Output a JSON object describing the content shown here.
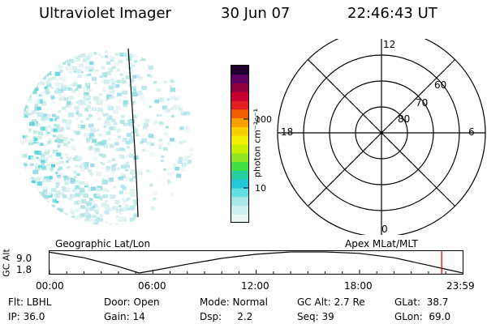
{
  "header": {
    "instrument": "Ultraviolet Imager",
    "date": "30 Jun 07",
    "time": "22:46:43 UT"
  },
  "colorbar": {
    "unit_label": "photon cm⁻²s⁻¹",
    "ticks": [
      "100",
      "10"
    ],
    "colors": [
      "#e8f4f4",
      "#cfeeee",
      "#a6e8e8",
      "#60e0e0",
      "#20c8d8",
      "#22d0a0",
      "#40e040",
      "#90e820",
      "#c8f000",
      "#f0f000",
      "#f8d000",
      "#f8a000",
      "#f06000",
      "#e02020",
      "#c80030",
      "#900040",
      "#600060",
      "#200030"
    ]
  },
  "polar": {
    "mlt_labels": [
      "12",
      "18",
      "6",
      "0"
    ],
    "lat_labels": [
      "60",
      "70",
      "80"
    ]
  },
  "timeline": {
    "left_label": "Geographic Lat/Lon",
    "right_label": "Apex MLat/MLT",
    "axis_label": "GC Alt",
    "y_ticks": [
      "9.0",
      "1.8"
    ],
    "time_ticks": [
      "00:00",
      "06:00",
      "12:00",
      "18:00",
      "23:59"
    ]
  },
  "info": {
    "filter": "Flt: LBHL",
    "ip": "IP: 36.0",
    "door": "Door: Open",
    "gain": "Gain: 14",
    "mode": "Mode: Normal",
    "dsp": "Dsp:     2.2",
    "gc_alt": "GC Alt: 2.7 Re",
    "seq": "Seq: 39",
    "glat": "GLat:  38.7",
    "glon": "GLon:  69.0"
  },
  "chart_data": {
    "type": "line",
    "xlabel": "",
    "ylabel": "GC Alt",
    "x": [
      "00:00",
      "02:00",
      "04:00",
      "05:12",
      "06:00",
      "08:00",
      "10:00",
      "12:00",
      "14:00",
      "16:00",
      "18:00",
      "20:00",
      "22:00",
      "23:59"
    ],
    "series": [
      {
        "values": [
          8.9,
          7.0,
          4.0,
          1.8,
          2.6,
          4.8,
          6.8,
          8.2,
          9.0,
          9.0,
          8.5,
          7.0,
          4.4,
          1.8
        ]
      }
    ],
    "current_time": "22:46",
    "ylim": [
      1.8,
      9.0
    ]
  }
}
